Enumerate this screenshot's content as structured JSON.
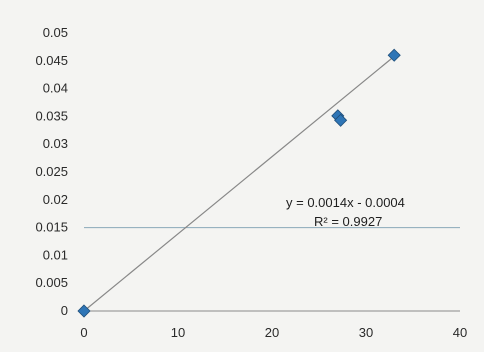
{
  "chart_data": {
    "type": "scatter",
    "title": "",
    "xlabel": "",
    "ylabel": "",
    "xlim": [
      0,
      40
    ],
    "ylim": [
      0,
      0.05
    ],
    "x_ticks": [
      0,
      10,
      20,
      30,
      40
    ],
    "y_ticks": [
      0,
      0.005,
      0.01,
      0.015,
      0.02,
      0.025,
      0.03,
      0.035,
      0.04,
      0.045,
      0.05
    ],
    "x_tick_labels": [
      "0",
      "10",
      "20",
      "30",
      "40"
    ],
    "y_tick_labels": [
      "0",
      "0.005",
      "0.01",
      "0.015",
      "0.02",
      "0.025",
      "0.03",
      "0.035",
      "0.04",
      "0.045",
      "0.05"
    ],
    "grid": false,
    "reference_line": {
      "y": 0.015
    },
    "series": [
      {
        "points": [
          {
            "x": 0,
            "y": 0
          },
          {
            "x": 27,
            "y": 0.0351
          },
          {
            "x": 27.3,
            "y": 0.0343
          },
          {
            "x": 33,
            "y": 0.046
          }
        ],
        "marker_color": "#2e75b6"
      }
    ],
    "trendline": {
      "slope": 0.0014,
      "intercept": -0.0004,
      "x_range": [
        0,
        33
      ],
      "color": "#888888"
    },
    "annotations": {
      "equation": "y = 0.0014x - 0.0004",
      "r_squared": "R² = 0.9927"
    }
  }
}
